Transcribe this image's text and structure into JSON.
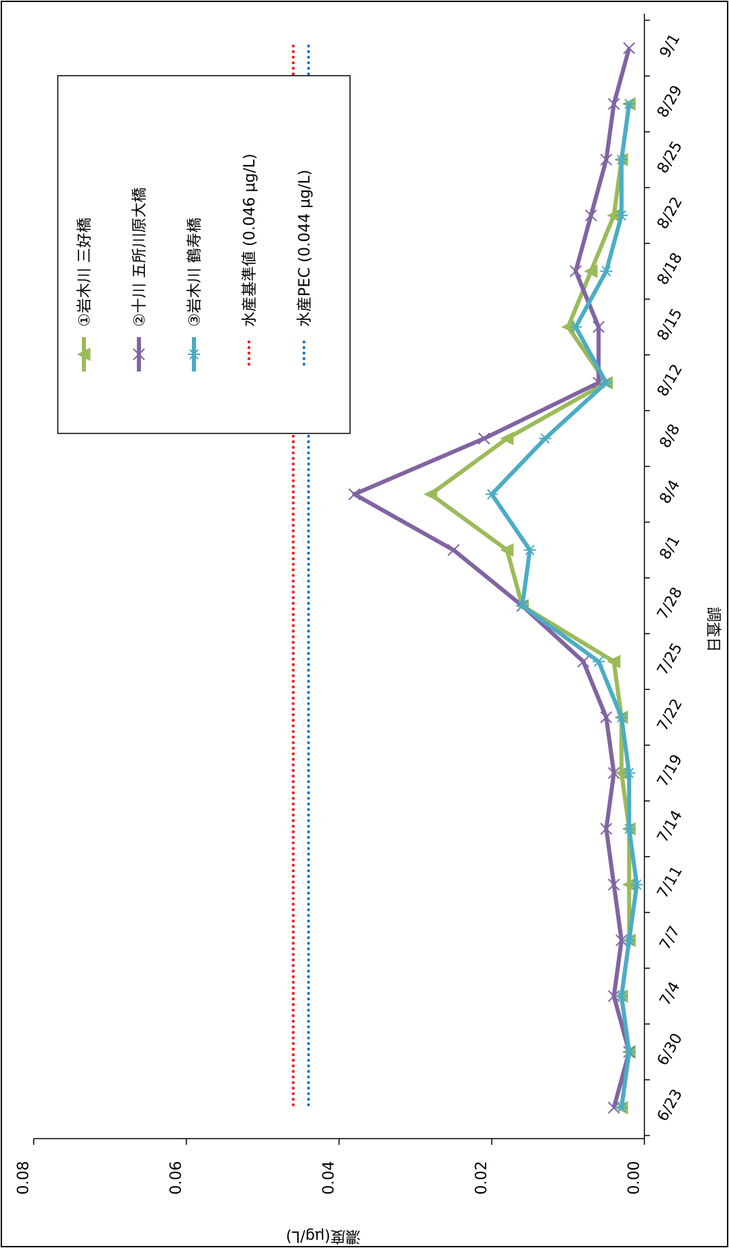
{
  "chart_data": {
    "type": "line",
    "xlabel": "調査日",
    "ylabel": "濃度(μg/L)",
    "ylim": [
      0,
      0.08
    ],
    "yticks": [
      "0.00",
      "0.02",
      "0.04",
      "0.06",
      "0.08"
    ],
    "orientation": "rotated-90-clockwise",
    "grid": false,
    "legend_position": "top-right",
    "categories": [
      "6/23",
      "6/30",
      "7/4",
      "7/7",
      "7/11",
      "7/14",
      "7/19",
      "7/22",
      "7/25",
      "7/28",
      "8/1",
      "8/4",
      "8/8",
      "8/12",
      "8/15",
      "8/18",
      "8/22",
      "8/25",
      "8/29",
      "9/1"
    ],
    "series": [
      {
        "name": "①岩木川 三好橋",
        "color": "#9bbb59",
        "marker": "triangle",
        "values": [
          0.003,
          0.002,
          0.003,
          0.002,
          0.002,
          0.002,
          0.003,
          0.003,
          0.004,
          0.016,
          0.018,
          0.028,
          0.018,
          0.005,
          0.01,
          0.007,
          0.004,
          0.003,
          0.002,
          null
        ]
      },
      {
        "name": "②十川 五所川原大橋",
        "color": "#8064a2",
        "marker": "x",
        "values": [
          0.004,
          0.002,
          0.004,
          0.003,
          0.004,
          0.005,
          0.004,
          0.005,
          0.008,
          0.016,
          0.025,
          0.038,
          0.021,
          0.006,
          0.006,
          0.009,
          0.007,
          0.005,
          0.004,
          0.002
        ]
      },
      {
        "name": "③岩木川 鶴寿橋",
        "color": "#4bacc6",
        "marker": "star",
        "values": [
          0.003,
          0.002,
          0.003,
          0.002,
          0.001,
          0.002,
          0.002,
          0.003,
          0.006,
          0.016,
          0.015,
          0.02,
          0.013,
          0.005,
          0.009,
          0.005,
          0.003,
          0.003,
          0.002,
          null
        ]
      }
    ],
    "reference_lines": [
      {
        "name": "水産基準値 (0.046 μg/L)",
        "value": 0.046,
        "color": "#ff0000",
        "style": "dotted"
      },
      {
        "name": "水産PEC (0.044 μg/L)",
        "value": 0.044,
        "color": "#0070c0",
        "style": "dotted"
      }
    ]
  }
}
